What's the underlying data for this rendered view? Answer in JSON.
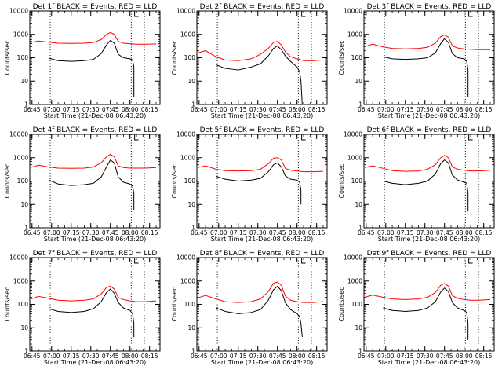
{
  "colors": {
    "events": "#000000",
    "lld": "#ff0000",
    "background": "#ffffff"
  },
  "legend_text": "BLACK = Events, RED = LLD",
  "shared_axes": {
    "xlabel": "Start Time (21-Dec-08 06:43:20)",
    "ylabel": "Counts/sec",
    "x_tick_labels": [
      "06:45",
      "07:00",
      "07:15",
      "07:30",
      "07:45",
      "08:00",
      "08:15"
    ],
    "y_tick_labels": [
      "1",
      "10",
      "100",
      "1000",
      "10000"
    ],
    "y_scale": "log",
    "ylim": [
      1,
      10000
    ],
    "xlim": [
      "06:43:20",
      "08:23:00"
    ],
    "dotted_vlines": [
      "06:59",
      "08:01",
      "08:11"
    ]
  },
  "chart_data": [
    {
      "type": "line",
      "title": "Det 1f BLACK = Events, RED = LLD",
      "xlabel": "Start Time (21-Dec-08 06:43:20)",
      "ylabel": "Counts/sec",
      "series": [
        {
          "name": "BLACK = Events",
          "color": "#000000",
          "x": [
            "06:58",
            "07:05",
            "07:15",
            "07:25",
            "07:32",
            "07:38",
            "07:42",
            "07:45",
            "07:48",
            "07:51",
            "07:55",
            "08:00",
            "08:02",
            "08:03",
            "08:03"
          ],
          "y": [
            95,
            75,
            70,
            75,
            85,
            150,
            350,
            550,
            420,
            140,
            100,
            90,
            80,
            40,
            2
          ]
        },
        {
          "name": "RED = LLD",
          "color": "#ff0000",
          "x": [
            "06:44",
            "06:50",
            "06:58",
            "07:05",
            "07:15",
            "07:25",
            "07:32",
            "07:38",
            "07:42",
            "07:45",
            "07:48",
            "07:51",
            "07:55",
            "08:00",
            "08:05",
            "08:12",
            "08:20"
          ],
          "y": [
            450,
            520,
            460,
            420,
            410,
            420,
            450,
            600,
            1000,
            1200,
            1000,
            500,
            420,
            400,
            380,
            380,
            390
          ]
        }
      ]
    },
    {
      "type": "line",
      "title": "Det 2f BLACK = Events, RED = LLD",
      "xlabel": "Start Time (21-Dec-08 06:43:20)",
      "ylabel": "Counts/sec",
      "series": [
        {
          "name": "BLACK = Events",
          "color": "#000000",
          "x": [
            "06:58",
            "07:05",
            "07:15",
            "07:25",
            "07:32",
            "07:38",
            "07:42",
            "07:45",
            "07:48",
            "07:51",
            "07:55",
            "08:00",
            "08:02",
            "08:03",
            "08:04"
          ],
          "y": [
            50,
            35,
            30,
            40,
            55,
            120,
            250,
            320,
            220,
            120,
            70,
            40,
            25,
            10,
            1
          ]
        },
        {
          "name": "RED = LLD",
          "color": "#ff0000",
          "x": [
            "06:44",
            "06:50",
            "06:58",
            "07:05",
            "07:15",
            "07:25",
            "07:32",
            "07:38",
            "07:42",
            "07:45",
            "07:48",
            "07:51",
            "07:55",
            "08:00",
            "08:05",
            "08:12",
            "08:20"
          ],
          "y": [
            160,
            200,
            110,
            80,
            75,
            90,
            140,
            250,
            450,
            500,
            350,
            180,
            110,
            90,
            75,
            75,
            80
          ]
        }
      ]
    },
    {
      "type": "line",
      "title": "Det 3f BLACK = Events, RED = LLD",
      "xlabel": "Start Time (21-Dec-08 06:43:20)",
      "ylabel": "Counts/sec",
      "series": [
        {
          "name": "BLACK = Events",
          "color": "#000000",
          "x": [
            "06:58",
            "07:05",
            "07:15",
            "07:25",
            "07:32",
            "07:38",
            "07:42",
            "07:45",
            "07:48",
            "07:51",
            "07:55",
            "08:00",
            "08:02",
            "08:03",
            "08:03"
          ],
          "y": [
            110,
            90,
            85,
            90,
            100,
            160,
            400,
            650,
            450,
            150,
            100,
            90,
            70,
            30,
            2
          ]
        },
        {
          "name": "RED = LLD",
          "color": "#ff0000",
          "x": [
            "06:44",
            "06:50",
            "06:58",
            "07:05",
            "07:15",
            "07:25",
            "07:32",
            "07:38",
            "07:42",
            "07:45",
            "07:48",
            "07:51",
            "07:55",
            "08:00",
            "08:05",
            "08:12",
            "08:20"
          ],
          "y": [
            300,
            380,
            290,
            250,
            240,
            250,
            280,
            420,
            800,
            950,
            750,
            320,
            260,
            240,
            230,
            220,
            220
          ]
        }
      ]
    },
    {
      "type": "line",
      "title": "Det 4f BLACK = Events, RED = LLD",
      "xlabel": "Start Time (21-Dec-08 06:43:20)",
      "ylabel": "Counts/sec",
      "series": [
        {
          "name": "BLACK = Events",
          "color": "#000000",
          "x": [
            "06:58",
            "07:05",
            "07:15",
            "07:25",
            "07:32",
            "07:38",
            "07:42",
            "07:45",
            "07:48",
            "07:51",
            "07:55",
            "08:00",
            "08:02",
            "08:03",
            "08:03"
          ],
          "y": [
            110,
            75,
            65,
            70,
            80,
            150,
            400,
            800,
            600,
            150,
            90,
            75,
            60,
            30,
            6
          ]
        },
        {
          "name": "RED = LLD",
          "color": "#ff0000",
          "x": [
            "06:44",
            "06:50",
            "06:58",
            "07:05",
            "07:15",
            "07:25",
            "07:32",
            "07:38",
            "07:42",
            "07:45",
            "07:48",
            "07:51",
            "07:55",
            "08:00",
            "08:05",
            "08:12",
            "08:20"
          ],
          "y": [
            380,
            480,
            400,
            360,
            350,
            360,
            400,
            600,
            1100,
            1400,
            1100,
            450,
            380,
            360,
            360,
            360,
            380
          ]
        }
      ]
    },
    {
      "type": "line",
      "title": "Det 5f BLACK = Events, RED = LLD",
      "xlabel": "Start Time (21-Dec-08 06:43:20)",
      "ylabel": "Counts/sec",
      "series": [
        {
          "name": "BLACK = Events",
          "color": "#000000",
          "x": [
            "06:58",
            "07:05",
            "07:15",
            "07:25",
            "07:32",
            "07:38",
            "07:42",
            "07:45",
            "07:48",
            "07:51",
            "07:55",
            "08:00",
            "08:02",
            "08:03",
            "08:03"
          ],
          "y": [
            160,
            120,
            100,
            110,
            130,
            250,
            500,
            600,
            400,
            170,
            120,
            110,
            90,
            40,
            10
          ]
        },
        {
          "name": "RED = LLD",
          "color": "#ff0000",
          "x": [
            "06:44",
            "06:50",
            "06:58",
            "07:05",
            "07:15",
            "07:25",
            "07:32",
            "07:38",
            "07:42",
            "07:45",
            "07:48",
            "07:51",
            "07:55",
            "08:00",
            "08:05",
            "08:12",
            "08:20"
          ],
          "y": [
            380,
            450,
            320,
            280,
            270,
            280,
            320,
            550,
            950,
            1000,
            800,
            350,
            290,
            270,
            250,
            250,
            260
          ]
        }
      ]
    },
    {
      "type": "line",
      "title": "Det 6f BLACK = Events, RED = LLD",
      "xlabel": "Start Time (21-Dec-08 06:43:20)",
      "ylabel": "Counts/sec",
      "series": [
        {
          "name": "BLACK = Events",
          "color": "#000000",
          "x": [
            "06:58",
            "07:05",
            "07:15",
            "07:25",
            "07:32",
            "07:38",
            "07:42",
            "07:45",
            "07:48",
            "07:51",
            "07:55",
            "08:00",
            "08:02",
            "08:03",
            "08:03"
          ],
          "y": [
            100,
            80,
            70,
            80,
            100,
            200,
            550,
            800,
            600,
            180,
            110,
            90,
            80,
            30,
            5
          ]
        },
        {
          "name": "RED = LLD",
          "color": "#ff0000",
          "x": [
            "06:44",
            "06:50",
            "06:58",
            "07:05",
            "07:15",
            "07:25",
            "07:32",
            "07:38",
            "07:42",
            "07:45",
            "07:48",
            "07:51",
            "07:55",
            "08:00",
            "08:05",
            "08:12",
            "08:20"
          ],
          "y": [
            380,
            450,
            350,
            280,
            260,
            270,
            320,
            500,
            1000,
            1250,
            1000,
            400,
            320,
            290,
            270,
            270,
            290
          ]
        }
      ]
    },
    {
      "type": "line",
      "title": "Det 7f BLACK = Events, RED = LLD",
      "xlabel": "Start Time (21-Dec-08 06:43:20)",
      "ylabel": "Counts/sec",
      "series": [
        {
          "name": "BLACK = Events",
          "color": "#000000",
          "x": [
            "06:58",
            "07:05",
            "07:15",
            "07:25",
            "07:32",
            "07:38",
            "07:42",
            "07:45",
            "07:48",
            "07:51",
            "07:55",
            "08:00",
            "08:02",
            "08:03",
            "08:03"
          ],
          "y": [
            65,
            50,
            45,
            50,
            65,
            130,
            320,
            450,
            300,
            120,
            70,
            55,
            40,
            15,
            4
          ]
        },
        {
          "name": "RED = LLD",
          "color": "#ff0000",
          "x": [
            "06:44",
            "06:50",
            "06:58",
            "07:05",
            "07:15",
            "07:25",
            "07:32",
            "07:38",
            "07:42",
            "07:45",
            "07:48",
            "07:51",
            "07:55",
            "08:00",
            "08:05",
            "08:12",
            "08:20"
          ],
          "y": [
            170,
            220,
            180,
            150,
            140,
            150,
            170,
            280,
            520,
            600,
            450,
            200,
            160,
            140,
            130,
            130,
            140
          ]
        }
      ]
    },
    {
      "type": "line",
      "title": "Det 8f BLACK = Events, RED = LLD",
      "xlabel": "Start Time (21-Dec-08 06:43:20)",
      "ylabel": "Counts/sec",
      "series": [
        {
          "name": "BLACK = Events",
          "color": "#000000",
          "x": [
            "06:58",
            "07:05",
            "07:15",
            "07:25",
            "07:32",
            "07:38",
            "07:42",
            "07:45",
            "07:48",
            "07:51",
            "07:55",
            "08:00",
            "08:02",
            "08:03",
            "08:04"
          ],
          "y": [
            70,
            50,
            40,
            45,
            60,
            150,
            420,
            600,
            380,
            120,
            60,
            40,
            30,
            15,
            4
          ]
        },
        {
          "name": "RED = LLD",
          "color": "#ff0000",
          "x": [
            "06:44",
            "06:50",
            "06:58",
            "07:05",
            "07:15",
            "07:25",
            "07:32",
            "07:38",
            "07:42",
            "07:45",
            "07:48",
            "07:51",
            "07:55",
            "08:00",
            "08:05",
            "08:12",
            "08:20"
          ],
          "y": [
            190,
            240,
            170,
            130,
            120,
            130,
            170,
            350,
            800,
            900,
            650,
            230,
            150,
            130,
            120,
            120,
            130
          ]
        }
      ]
    },
    {
      "type": "line",
      "title": "Det 9f BLACK = Events, RED = LLD",
      "xlabel": "Start Time (21-Dec-08 06:43:20)",
      "ylabel": "Counts/sec",
      "series": [
        {
          "name": "BLACK = Events",
          "color": "#000000",
          "x": [
            "06:58",
            "07:05",
            "07:15",
            "07:25",
            "07:32",
            "07:38",
            "07:42",
            "07:45",
            "07:48",
            "07:51",
            "07:55",
            "08:00",
            "08:02",
            "08:03",
            "08:03"
          ],
          "y": [
            70,
            55,
            50,
            55,
            70,
            130,
            330,
            500,
            350,
            120,
            70,
            55,
            45,
            15,
            3
          ]
        },
        {
          "name": "RED = LLD",
          "color": "#ff0000",
          "x": [
            "06:44",
            "06:50",
            "06:58",
            "07:05",
            "07:15",
            "07:25",
            "07:32",
            "07:38",
            "07:42",
            "07:45",
            "07:48",
            "07:51",
            "07:55",
            "08:00",
            "08:05",
            "08:12",
            "08:20"
          ],
          "y": [
            200,
            250,
            200,
            170,
            160,
            170,
            200,
            320,
            650,
            780,
            600,
            240,
            180,
            160,
            150,
            150,
            160
          ]
        }
      ]
    }
  ]
}
